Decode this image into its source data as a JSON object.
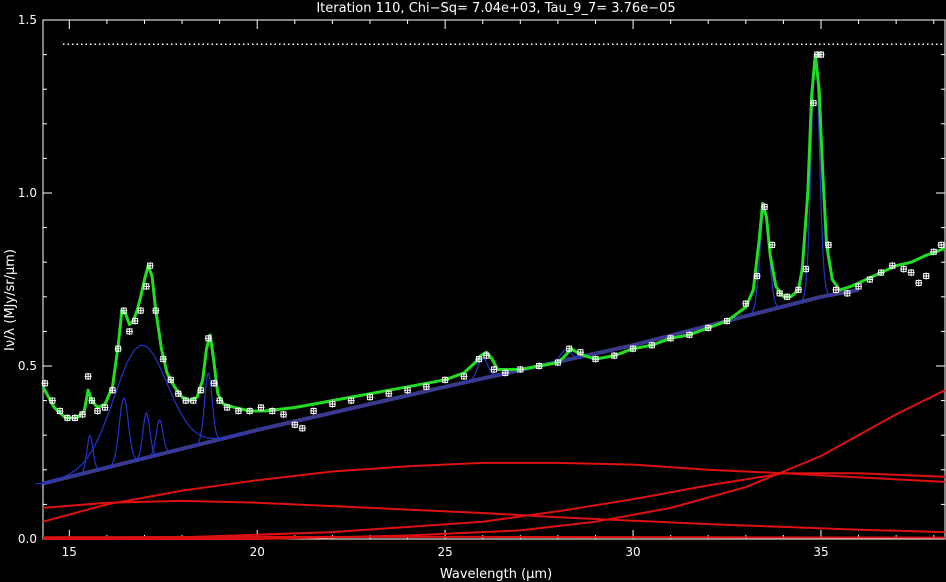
{
  "chart_data": {
    "type": "line",
    "title": "Iteration 110, Chi−Sq= 7.04e+03, Tau_9_7= 3.76e−05",
    "xlabel": "Wavelength (μm)",
    "ylabel": "Iν/λ (MJy/sr/μm)",
    "xlim": [
      14.3,
      38.3
    ],
    "ylim": [
      0.0,
      1.5
    ],
    "xticks": [
      "15",
      "20",
      "25",
      "30",
      "35"
    ],
    "yticks": [
      "0.0",
      "0.5",
      "1.0",
      "1.5"
    ],
    "x_tick_values": [
      15,
      20,
      25,
      30,
      35
    ],
    "y_tick_values": [
      0.0,
      0.5,
      1.0,
      1.5
    ],
    "grid": false,
    "reference_level": 1.43,
    "colors": {
      "background": "#000000",
      "axes": "#ffffff",
      "data": "#ffffff",
      "total_fit": "#22dd22",
      "continuum": "#3a3a8c",
      "features": "#2233cc",
      "dust": "#dd1111"
    },
    "series": [
      {
        "role": "data",
        "x": [
          14.35,
          14.55,
          14.75,
          14.95,
          15.15,
          15.35,
          15.5,
          15.6,
          15.75,
          15.95,
          16.15,
          16.3,
          16.45,
          16.6,
          16.75,
          16.9,
          17.05,
          17.15,
          17.3,
          17.5,
          17.7,
          17.9,
          18.1,
          18.3,
          18.5,
          18.7,
          18.85,
          19.0,
          19.2,
          19.5,
          19.8,
          20.1,
          20.4,
          20.7,
          21.0,
          21.2,
          21.5,
          22.0,
          22.5,
          23.0,
          23.5,
          24.0,
          24.5,
          25.0,
          25.5,
          25.9,
          26.1,
          26.3,
          26.6,
          27.0,
          27.5,
          28.0,
          28.3,
          28.6,
          29.0,
          29.5,
          30.0,
          30.5,
          31.0,
          31.5,
          32.0,
          32.5,
          33.0,
          33.3,
          33.5,
          33.7,
          33.9,
          34.1,
          34.4,
          34.6,
          34.8,
          34.9,
          35.0,
          35.2,
          35.4,
          35.7,
          36.0,
          36.3,
          36.6,
          36.9,
          37.2,
          37.4,
          37.6,
          37.8,
          38.0,
          38.2
        ],
        "y": [
          0.45,
          0.4,
          0.37,
          0.35,
          0.35,
          0.36,
          0.47,
          0.4,
          0.37,
          0.38,
          0.43,
          0.55,
          0.66,
          0.6,
          0.63,
          0.66,
          0.73,
          0.79,
          0.66,
          0.52,
          0.46,
          0.42,
          0.4,
          0.4,
          0.43,
          0.58,
          0.45,
          0.4,
          0.38,
          0.37,
          0.37,
          0.38,
          0.37,
          0.36,
          0.33,
          0.32,
          0.37,
          0.39,
          0.4,
          0.41,
          0.42,
          0.43,
          0.44,
          0.46,
          0.47,
          0.52,
          0.53,
          0.49,
          0.48,
          0.49,
          0.5,
          0.51,
          0.55,
          0.54,
          0.52,
          0.53,
          0.55,
          0.56,
          0.58,
          0.59,
          0.61,
          0.63,
          0.68,
          0.76,
          0.96,
          0.85,
          0.71,
          0.7,
          0.72,
          0.78,
          1.26,
          1.4,
          1.4,
          0.85,
          0.72,
          0.71,
          0.73,
          0.75,
          0.77,
          0.79,
          0.78,
          0.77,
          0.74,
          0.76,
          0.83,
          0.85
        ]
      },
      {
        "role": "total_fit",
        "x": [
          14.3,
          14.6,
          14.9,
          15.2,
          15.4,
          15.5,
          15.6,
          15.75,
          15.95,
          16.15,
          16.3,
          16.4,
          16.5,
          16.6,
          16.7,
          16.8,
          16.9,
          17.0,
          17.1,
          17.2,
          17.3,
          17.45,
          17.6,
          17.8,
          18.0,
          18.2,
          18.4,
          18.55,
          18.65,
          18.75,
          18.85,
          18.95,
          19.1,
          19.4,
          19.8,
          20.2,
          20.6,
          21.0,
          21.5,
          22.0,
          22.5,
          23.0,
          23.5,
          24.0,
          24.5,
          25.0,
          25.5,
          25.8,
          25.95,
          26.1,
          26.25,
          26.4,
          26.7,
          27.0,
          27.5,
          28.0,
          28.2,
          28.35,
          28.5,
          28.7,
          29.0,
          29.5,
          30.0,
          30.5,
          31.0,
          31.5,
          32.0,
          32.5,
          33.0,
          33.2,
          33.35,
          33.45,
          33.55,
          33.65,
          33.8,
          34.0,
          34.2,
          34.4,
          34.5,
          34.65,
          34.75,
          34.85,
          34.95,
          35.05,
          35.15,
          35.3,
          35.5,
          35.8,
          36.2,
          36.6,
          37.0,
          37.4,
          37.8,
          38.3
        ],
        "y": [
          0.44,
          0.38,
          0.35,
          0.35,
          0.37,
          0.43,
          0.4,
          0.38,
          0.39,
          0.44,
          0.56,
          0.66,
          0.65,
          0.62,
          0.63,
          0.66,
          0.7,
          0.75,
          0.79,
          0.76,
          0.66,
          0.55,
          0.48,
          0.44,
          0.41,
          0.4,
          0.41,
          0.46,
          0.55,
          0.59,
          0.51,
          0.42,
          0.39,
          0.38,
          0.37,
          0.37,
          0.375,
          0.38,
          0.39,
          0.4,
          0.41,
          0.42,
          0.43,
          0.44,
          0.45,
          0.46,
          0.48,
          0.51,
          0.53,
          0.54,
          0.52,
          0.49,
          0.49,
          0.49,
          0.5,
          0.51,
          0.53,
          0.55,
          0.54,
          0.53,
          0.52,
          0.53,
          0.55,
          0.56,
          0.58,
          0.59,
          0.61,
          0.63,
          0.67,
          0.72,
          0.86,
          0.97,
          0.93,
          0.82,
          0.73,
          0.7,
          0.7,
          0.72,
          0.78,
          1.0,
          1.28,
          1.4,
          1.3,
          1.05,
          0.85,
          0.75,
          0.72,
          0.73,
          0.75,
          0.77,
          0.79,
          0.8,
          0.82,
          0.84
        ]
      },
      {
        "role": "continuum",
        "x": [
          14.3,
          20,
          25,
          30,
          35,
          36
        ],
        "y": [
          0.16,
          0.315,
          0.44,
          0.56,
          0.7,
          0.72
        ]
      },
      {
        "role": "features",
        "lines": [
          {
            "center": 15.55,
            "width": 0.08,
            "height": 0.105
          },
          {
            "center": 16.45,
            "width": 0.12,
            "height": 0.19
          },
          {
            "center": 16.9,
            "width": 0.7,
            "height": 0.33
          },
          {
            "center": 17.05,
            "width": 0.09,
            "height": 0.13
          },
          {
            "center": 17.4,
            "width": 0.09,
            "height": 0.1
          },
          {
            "center": 18.7,
            "width": 0.1,
            "height": 0.2
          },
          {
            "center": 26.0,
            "width": 0.13,
            "height": 0.06
          },
          {
            "center": 28.2,
            "width": 0.13,
            "height": 0.03
          },
          {
            "center": 33.5,
            "width": 0.12,
            "height": 0.3
          },
          {
            "center": 34.85,
            "width": 0.11,
            "height": 0.7
          }
        ]
      },
      {
        "role": "dust",
        "curves": [
          {
            "x": [
              14.3,
              16,
              18,
              20,
              22,
              24,
              26,
              28,
              30,
              32,
              34,
              36,
              38.3
            ],
            "y": [
              0.09,
              0.105,
              0.11,
              0.105,
              0.095,
              0.085,
              0.075,
              0.063,
              0.053,
              0.043,
              0.035,
              0.027,
              0.02
            ]
          },
          {
            "x": [
              14.3,
              16,
              18,
              20,
              22,
              24,
              26,
              28,
              30,
              32,
              34,
              36,
              38.3
            ],
            "y": [
              0.05,
              0.1,
              0.14,
              0.17,
              0.195,
              0.21,
              0.22,
              0.22,
              0.215,
              0.2,
              0.19,
              0.178,
              0.165
            ]
          },
          {
            "x": [
              14.3,
              18,
              22,
              26,
              28,
              30,
              32,
              34,
              36,
              38.3
            ],
            "y": [
              0.0,
              0.005,
              0.02,
              0.05,
              0.08,
              0.115,
              0.155,
              0.19,
              0.19,
              0.18
            ]
          },
          {
            "x": [
              14.3,
              20,
              24,
              27,
              29,
              31,
              33,
              35,
              37,
              38.3
            ],
            "y": [
              0.0,
              0.0,
              0.01,
              0.025,
              0.05,
              0.09,
              0.15,
              0.24,
              0.36,
              0.43
            ]
          },
          {
            "x": [
              14.3,
              20,
              26,
              32,
              38.3
            ],
            "y": [
              0.005,
              0.006,
              0.006,
              0.005,
              0.004
            ]
          }
        ]
      }
    ]
  }
}
